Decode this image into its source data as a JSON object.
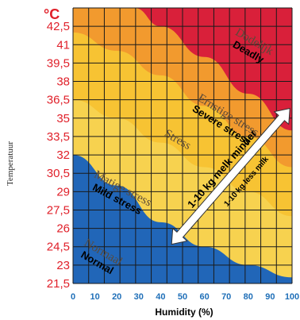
{
  "chart_data": {
    "type": "heatmap",
    "unit_label": "°C",
    "ylabel": "Temperatuur",
    "xlabel": "Humidity (%)",
    "y_ticks": [
      "42,5",
      "41",
      "39,5",
      "38",
      "36,5",
      "35",
      "33,5",
      "32",
      "30,5",
      "29",
      "27,5",
      "26",
      "24,5",
      "23",
      "21,5"
    ],
    "y_values": [
      42.5,
      41,
      39.5,
      38,
      36.5,
      35,
      33.5,
      32,
      30.5,
      29,
      27.5,
      26,
      24.5,
      23,
      21.5
    ],
    "x_ticks": [
      "0",
      "10",
      "20",
      "30",
      "40",
      "50",
      "60",
      "70",
      "80",
      "90",
      "100"
    ],
    "x_values": [
      0,
      10,
      20,
      30,
      40,
      50,
      60,
      70,
      80,
      90,
      100
    ],
    "xlim": [
      0,
      100
    ],
    "ylim": [
      21.5,
      44
    ],
    "zones": [
      {
        "name_nl": "Normaal",
        "name_en": "Normal",
        "color": "#2166b8",
        "upper_boundary": [
          [
            0,
            32
          ],
          [
            20,
            29.5
          ],
          [
            40,
            26.5
          ],
          [
            60,
            24.5
          ],
          [
            80,
            23
          ],
          [
            100,
            22
          ]
        ]
      },
      {
        "name_nl": "Matige stress",
        "name_en": "Mild stress",
        "color": "#f7d24f",
        "upper_boundary": [
          [
            0,
            36.5
          ],
          [
            20,
            35
          ],
          [
            40,
            33
          ],
          [
            60,
            31
          ],
          [
            80,
            29
          ],
          [
            100,
            27
          ]
        ]
      },
      {
        "name_nl": "Stress",
        "name_en": "",
        "color": "#f7c333",
        "upper_boundary": [
          [
            0,
            42
          ],
          [
            20,
            40.5
          ],
          [
            40,
            38.5
          ],
          [
            60,
            36
          ],
          [
            80,
            33.5
          ],
          [
            100,
            31
          ]
        ]
      },
      {
        "name_nl": "Ernstige stress",
        "name_en": "Severe stress",
        "color": "#f29a2e",
        "upper_boundary": [
          [
            28,
            44
          ],
          [
            40,
            42.5
          ],
          [
            60,
            40
          ],
          [
            80,
            37
          ],
          [
            100,
            34
          ]
        ]
      },
      {
        "name_nl": "Dodelijk",
        "name_en": "Deadly",
        "color": "#d9203a",
        "upper_boundary": [
          [
            100,
            44
          ]
        ]
      }
    ],
    "annotation": {
      "line1": "1-10 kg melk minder",
      "line2": "1-10 kg less milk"
    },
    "colors": {
      "grid": "#1a1a1a",
      "ytick": "#e0202a",
      "xtick": "#1f6fb8",
      "arrow": "#ffffff"
    }
  }
}
